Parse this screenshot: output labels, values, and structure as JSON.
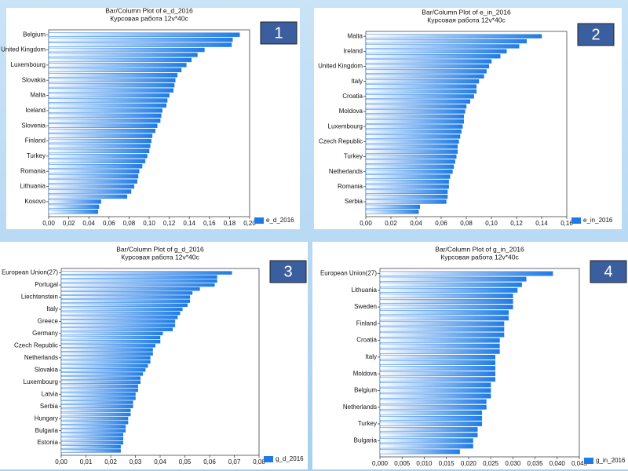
{
  "chart_data": [
    {
      "type": "bar",
      "title": "Bar/Column Plot of e_d_2016",
      "subtitle": "Курсовая работа 12v*40c",
      "annotation": "1",
      "color": "#1e7be6",
      "categories": [
        "Belgium",
        null,
        null,
        "United Kingdom",
        null,
        null,
        "Luxembourg",
        null,
        null,
        "Slovakia",
        null,
        null,
        "Malta",
        null,
        null,
        "Iceland",
        null,
        null,
        "Slovenia",
        null,
        null,
        "Finland",
        null,
        null,
        "Turkey",
        null,
        null,
        "Romania",
        null,
        null,
        "Lithuania",
        null,
        null,
        "Kosovo",
        null,
        null
      ],
      "series": [
        {
          "name": "e_d_2016",
          "color": "#1e7be6",
          "values": [
            0.19,
            0.183,
            0.182,
            0.155,
            0.148,
            0.142,
            0.137,
            0.132,
            0.128,
            0.126,
            0.125,
            0.124,
            0.12,
            0.118,
            0.117,
            0.113,
            0.112,
            0.111,
            0.108,
            0.106,
            0.103,
            0.102,
            0.101,
            0.1,
            0.098,
            0.096,
            0.093,
            0.09,
            0.089,
            0.088,
            0.085,
            0.082,
            0.078,
            0.052,
            0.05,
            0.049
          ]
        }
      ],
      "xlim": [
        0,
        0.2
      ],
      "xticks": [
        {
          "value": 0,
          "label": "0,00"
        },
        {
          "value": 0.02,
          "label": "0,02"
        },
        {
          "value": 0.04,
          "label": "0,04"
        },
        {
          "value": 0.06,
          "label": "0,06"
        },
        {
          "value": 0.08,
          "label": "0,08"
        },
        {
          "value": 0.1,
          "label": "0,10"
        },
        {
          "value": 0.12,
          "label": "0,12"
        },
        {
          "value": 0.14,
          "label": "0,14"
        },
        {
          "value": 0.16,
          "label": "0,16"
        },
        {
          "value": 0.18,
          "label": "0,18"
        },
        {
          "value": 0.2,
          "label": "0,20"
        }
      ],
      "legend": "bottom-right"
    },
    {
      "type": "bar",
      "title": "Bar/Column Plot of e_in_2016",
      "subtitle": "Курсовая работа 12v*40c",
      "annotation": "2",
      "color": "#1e7be6",
      "categories": [
        "Malta",
        null,
        null,
        "Ireland",
        null,
        null,
        "United Kingdom",
        null,
        null,
        "Italy",
        null,
        null,
        "Croatia",
        null,
        null,
        "Moldova",
        null,
        null,
        "Luxembourg",
        null,
        null,
        "Czech Republic",
        null,
        null,
        "Turkey",
        null,
        null,
        "Netherlands",
        null,
        null,
        "Romania",
        null,
        null,
        "Serbia",
        null,
        null
      ],
      "series": [
        {
          "name": "e_in_2016",
          "color": "#1e7be6",
          "values": [
            0.14,
            0.128,
            0.122,
            0.112,
            0.107,
            0.1,
            0.098,
            0.096,
            0.094,
            0.09,
            0.088,
            0.088,
            0.086,
            0.083,
            0.08,
            0.079,
            0.078,
            0.078,
            0.077,
            0.076,
            0.075,
            0.074,
            0.073,
            0.073,
            0.072,
            0.071,
            0.07,
            0.069,
            0.067,
            0.066,
            0.066,
            0.065,
            0.065,
            0.064,
            0.043,
            0.042
          ]
        }
      ],
      "xlim": [
        0,
        0.16
      ],
      "xticks": [
        {
          "value": 0,
          "label": "0,00"
        },
        {
          "value": 0.02,
          "label": "0,02"
        },
        {
          "value": 0.04,
          "label": "0,04"
        },
        {
          "value": 0.06,
          "label": "0,06"
        },
        {
          "value": 0.08,
          "label": "0,08"
        },
        {
          "value": 0.1,
          "label": "0,10"
        },
        {
          "value": 0.12,
          "label": "0,12"
        },
        {
          "value": 0.14,
          "label": "0,14"
        },
        {
          "value": 0.16,
          "label": "0,16"
        }
      ],
      "legend": "bottom-right"
    },
    {
      "type": "bar",
      "title": "Bar/Column Plot of g_d_2016",
      "subtitle": "Курсовая работа 12v*40c",
      "annotation": "3",
      "color": "#1e7be6",
      "categories": [
        "European Union(27)",
        null,
        null,
        "Portugal",
        null,
        null,
        "Liechtenstein",
        null,
        null,
        "Italy",
        null,
        null,
        "Greece",
        null,
        null,
        "Germany",
        null,
        null,
        "Czech Republic",
        null,
        null,
        "Netherlands",
        null,
        null,
        "Slovakia",
        null,
        null,
        "Luxembourg",
        null,
        null,
        "Latvia",
        null,
        null,
        "Serbia",
        null,
        null,
        "Hungary",
        null,
        null,
        "Bulgaria",
        null,
        null,
        "Estonia",
        null,
        null
      ],
      "series": [
        {
          "name": "g_d_2016",
          "color": "#1e7be6",
          "values": [
            0.069,
            0.063,
            0.063,
            0.062,
            0.056,
            0.053,
            0.052,
            0.052,
            0.051,
            0.049,
            0.048,
            0.047,
            0.046,
            0.046,
            0.045,
            0.041,
            0.04,
            0.04,
            0.038,
            0.037,
            0.037,
            0.036,
            0.036,
            0.035,
            0.034,
            0.033,
            0.032,
            0.032,
            0.031,
            0.031,
            0.03,
            0.03,
            0.029,
            0.029,
            0.028,
            0.028,
            0.027,
            0.027,
            0.026,
            0.026,
            0.025,
            0.025,
            0.025,
            0.024,
            0.024
          ]
        }
      ],
      "xlim": [
        0,
        0.08
      ],
      "xticks": [
        {
          "value": 0,
          "label": "0,00"
        },
        {
          "value": 0.01,
          "label": "0,01"
        },
        {
          "value": 0.02,
          "label": "0,02"
        },
        {
          "value": 0.03,
          "label": "0,03"
        },
        {
          "value": 0.04,
          "label": "0,04"
        },
        {
          "value": 0.05,
          "label": "0,05"
        },
        {
          "value": 0.06,
          "label": "0,06"
        },
        {
          "value": 0.07,
          "label": "0,07"
        },
        {
          "value": 0.08,
          "label": "0,08"
        }
      ],
      "legend": "bottom-right"
    },
    {
      "type": "bar",
      "title": "Bar/Column Plot of g_in_2016",
      "subtitle": "Курсовая работа 12v*40c",
      "annotation": "4",
      "color": "#1e7be6",
      "categories": [
        "European Union(27)",
        null,
        null,
        "Lithuania",
        null,
        null,
        "Sweden",
        null,
        null,
        "Finland",
        null,
        null,
        "Croatia",
        null,
        null,
        "Italy",
        null,
        null,
        "Moldova",
        null,
        null,
        "Belgium",
        null,
        null,
        "Netherlands",
        null,
        null,
        "Turkey",
        null,
        null,
        "Bulgaria",
        null,
        null
      ],
      "series": [
        {
          "name": "g_in_2016",
          "color": "#1e7be6",
          "values": [
            0.039,
            0.033,
            0.032,
            0.031,
            0.03,
            0.03,
            0.03,
            0.029,
            0.029,
            0.028,
            0.028,
            0.028,
            0.027,
            0.027,
            0.027,
            0.026,
            0.026,
            0.026,
            0.026,
            0.026,
            0.025,
            0.025,
            0.025,
            0.024,
            0.024,
            0.023,
            0.023,
            0.023,
            0.022,
            0.022,
            0.021,
            0.021,
            0.018
          ]
        }
      ],
      "xlim": [
        0,
        0.045
      ],
      "xticks": [
        {
          "value": 0,
          "label": "0,000"
        },
        {
          "value": 0.005,
          "label": "0,005"
        },
        {
          "value": 0.01,
          "label": "0,010"
        },
        {
          "value": 0.015,
          "label": "0,015"
        },
        {
          "value": 0.02,
          "label": "0,020"
        },
        {
          "value": 0.025,
          "label": "0,025"
        },
        {
          "value": 0.03,
          "label": "0,030"
        },
        {
          "value": 0.035,
          "label": "0,035"
        },
        {
          "value": 0.04,
          "label": "0,040"
        },
        {
          "value": 0.045,
          "label": "0,045"
        }
      ],
      "legend": "bottom-right"
    }
  ]
}
